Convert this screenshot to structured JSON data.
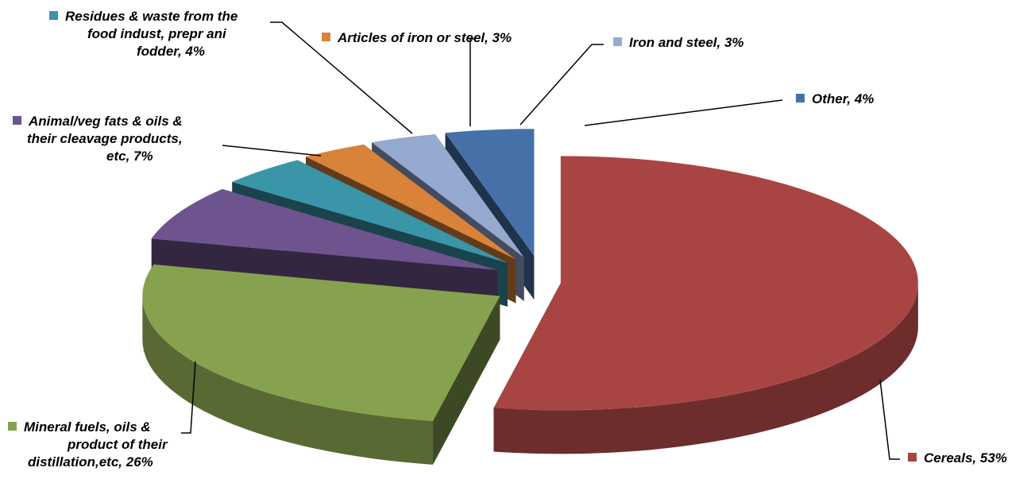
{
  "chart_data": {
    "type": "pie",
    "style": "3d-exploded",
    "slices": [
      {
        "label": "Cereals, 53%",
        "value": 53,
        "color": "#A84543"
      },
      {
        "label": "Mineral fuels, oils & product of their distillation,etc, 26%",
        "value": 26,
        "color": "#87A24F"
      },
      {
        "label": "Animal/veg fats & oils & their cleavage products, etc, 7%",
        "value": 7,
        "color": "#6E548F"
      },
      {
        "label": "Residues & waste from the food indust, prepr ani fodder, 4%",
        "value": 4,
        "color": "#3A95A9"
      },
      {
        "label": "Articles of iron or steel, 3%",
        "value": 3,
        "color": "#D9823A"
      },
      {
        "label": "Iron and steel, 3%",
        "value": 3,
        "color": "#95A9D1"
      },
      {
        "label": "Other, 4%",
        "value": 4,
        "color": "#4571A8"
      }
    ]
  },
  "labels": {
    "cereals": "Cereals, 53%",
    "mineral": [
      "Mineral fuels, oils &",
      "product of their",
      "distillation,etc, 26%"
    ],
    "animal": [
      "Animal/veg fats & oils &",
      "their cleavage products,",
      "etc, 7%"
    ],
    "residues": [
      "Residues & waste from the",
      "food indust, prepr ani",
      "fodder, 4%"
    ],
    "articles": "Articles of iron or steel, 3%",
    "iron": "Iron and steel, 3%",
    "other": "Other, 4%"
  }
}
